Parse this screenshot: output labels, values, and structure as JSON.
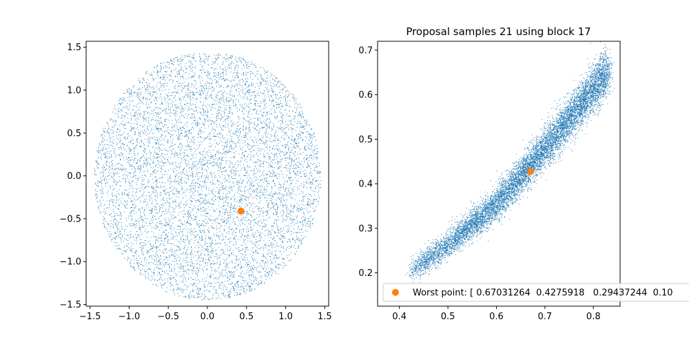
{
  "chart_data": [
    {
      "type": "scatter",
      "title": "",
      "xlabel": "",
      "ylabel": "",
      "xlim": [
        -1.55,
        1.55
      ],
      "ylim": [
        -1.52,
        1.57
      ],
      "xticks": [
        -1.5,
        -1.0,
        -0.5,
        0.0,
        0.5,
        1.0,
        1.5
      ],
      "yticks": [
        -1.5,
        -1.0,
        -0.5,
        0.0,
        0.5,
        1.0,
        1.5
      ],
      "xtick_labels": [
        "−1.5",
        "−1.0",
        "−0.5",
        "0.0",
        "0.5",
        "1.0",
        "1.5"
      ],
      "ytick_labels": [
        "−1.5",
        "−1.0",
        "−0.5",
        "0.0",
        "0.5",
        "1.0",
        "1.5"
      ],
      "grid": false,
      "series": [
        {
          "kind": "samples",
          "color": "#1f77b4",
          "marker": "pixel",
          "count": 9000,
          "distribution": "uniform disk",
          "center": [
            0.0,
            0.0
          ],
          "radius": 1.45
        },
        {
          "kind": "highlight",
          "color": "#ff7f0e",
          "marker": "circle",
          "points": [
            [
              0.43,
              -0.41
            ]
          ]
        }
      ]
    },
    {
      "type": "scatter",
      "title": "Proposal samples 21 using block 17",
      "xlabel": "",
      "ylabel": "",
      "xlim": [
        0.355,
        0.855
      ],
      "ylim": [
        0.125,
        0.72
      ],
      "xticks": [
        0.4,
        0.5,
        0.6,
        0.7,
        0.8
      ],
      "yticks": [
        0.2,
        0.3,
        0.4,
        0.5,
        0.6,
        0.7
      ],
      "xtick_labels": [
        "0.4",
        "0.5",
        "0.6",
        "0.7",
        "0.8"
      ],
      "ytick_labels": [
        "0.2",
        "0.3",
        "0.4",
        "0.5",
        "0.6",
        "0.7"
      ],
      "grid": false,
      "legend": {
        "loc": "lower left",
        "entries": [
          "Worst point: [ 0.67031264  0.4275918   0.29437244  0.10"
        ]
      },
      "series": [
        {
          "kind": "samples",
          "color": "#1f77b4",
          "marker": "pixel",
          "count": 9000,
          "distribution": "curved banana band",
          "x_range": [
            0.42,
            0.83
          ],
          "curve": [
            [
              0.42,
              0.2
            ],
            [
              0.5,
              0.265
            ],
            [
              0.6,
              0.355
            ],
            [
              0.7,
              0.48
            ],
            [
              0.83,
              0.655
            ]
          ],
          "band_halfwidth_y": 0.035
        },
        {
          "kind": "highlight",
          "color": "#ff7f0e",
          "marker": "circle",
          "points": [
            [
              0.67031264,
              0.4275918
            ]
          ]
        }
      ]
    }
  ]
}
